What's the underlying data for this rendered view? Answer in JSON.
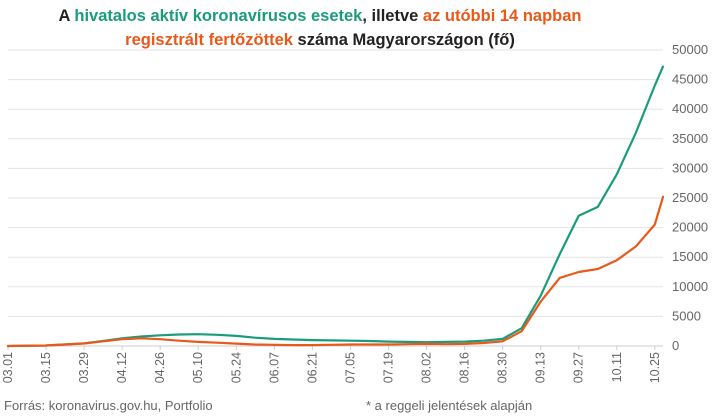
{
  "title_parts": [
    {
      "text": "A ",
      "color": "#222222"
    },
    {
      "text": "hivatalos aktív koronavírusos esetek",
      "color": "#1a9c7c"
    },
    {
      "text": ", illetve ",
      "color": "#222222"
    },
    {
      "text": "az utóbbi 14 napban regisztrált fertőzöttek",
      "color": "#e8591a"
    },
    {
      "text": " száma Magyarországon (fő)",
      "color": "#222222"
    }
  ],
  "footer": {
    "source": "Forrás: koronavirus.gov.hu, Portfolio",
    "note": "* a reggeli jelentések alapján"
  },
  "colors": {
    "active": "#1a9c7c",
    "recent": "#e8591a",
    "grid": "#e3e3e3",
    "axis": "#cccccc"
  },
  "chart_data": {
    "type": "line",
    "ylim": [
      0,
      50000
    ],
    "y_ticks": [
      0,
      5000,
      10000,
      15000,
      20000,
      25000,
      30000,
      35000,
      40000,
      45000,
      50000
    ],
    "x_tick_labels": [
      "03.01",
      "03.15",
      "03.29",
      "04.12",
      "04.26",
      "05.10",
      "05.24",
      "06.07",
      "06.21",
      "07.05",
      "07.19",
      "08.02",
      "08.16",
      "08.30",
      "09.13",
      "09.27",
      "10.11",
      "10.25"
    ],
    "x": [
      "03.01",
      "03.15",
      "03.29",
      "04.05",
      "04.12",
      "04.19",
      "04.26",
      "05.03",
      "05.10",
      "05.17",
      "05.24",
      "05.31",
      "06.07",
      "06.14",
      "06.21",
      "06.28",
      "07.05",
      "07.12",
      "07.19",
      "07.26",
      "08.02",
      "08.09",
      "08.16",
      "08.23",
      "08.30",
      "09.06",
      "09.13",
      "09.20",
      "09.27",
      "10.04",
      "10.11",
      "10.18",
      "10.25",
      "10.28"
    ],
    "series": [
      {
        "key": "active",
        "values": [
          0,
          80,
          450,
          850,
          1300,
          1600,
          1800,
          1950,
          2000,
          1900,
          1700,
          1400,
          1200,
          1100,
          1000,
          950,
          900,
          850,
          750,
          700,
          650,
          700,
          750,
          900,
          1200,
          3000,
          8500,
          15500,
          22000,
          23500,
          29000,
          36000,
          44000,
          47200
        ]
      },
      {
        "key": "recent",
        "values": [
          0,
          80,
          430,
          800,
          1150,
          1300,
          1150,
          900,
          700,
          550,
          400,
          250,
          200,
          150,
          150,
          200,
          250,
          250,
          250,
          300,
          350,
          300,
          350,
          500,
          800,
          2500,
          7500,
          11500,
          12500,
          13000,
          14500,
          16800,
          20500,
          25200
        ]
      }
    ]
  }
}
